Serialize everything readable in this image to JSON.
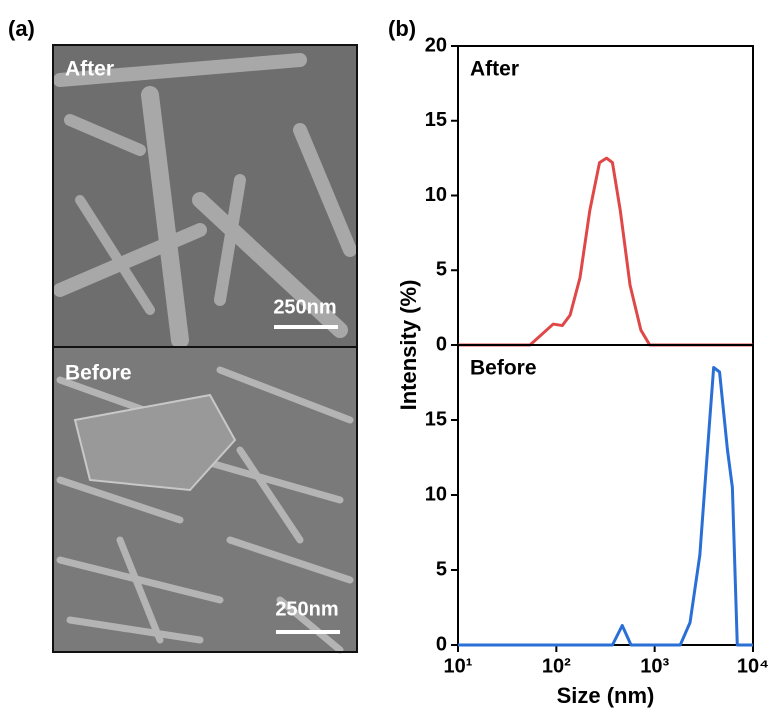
{
  "panel_a": {
    "label": "(a)",
    "images": [
      {
        "caption": "After",
        "scale_bar": "250nm"
      },
      {
        "caption": "Before",
        "scale_bar": "250nm"
      }
    ]
  },
  "panel_b_label": "(b)",
  "chart_data": [
    {
      "type": "line",
      "log_x": true,
      "ylabel": "Intensity (%)",
      "x": [
        10,
        54,
        93,
        115,
        138,
        174,
        219,
        275,
        324,
        372,
        447,
        562,
        724,
        891,
        10000
      ],
      "series": [
        {
          "name": "After",
          "color": "#e04848",
          "values": [
            0,
            0,
            1.4,
            1.3,
            2.0,
            4.5,
            9,
            12.2,
            12.5,
            12.2,
            9,
            4,
            1,
            0,
            0
          ]
        }
      ],
      "xlim": [
        10,
        10000
      ],
      "ylim": [
        0,
        20
      ],
      "yticks": [
        0,
        5,
        10,
        15,
        20
      ]
    },
    {
      "type": "line",
      "log_x": true,
      "xlabel": "Size (nm)",
      "x": [
        10,
        372,
        468,
        575,
        1820,
        2290,
        2880,
        3630,
        3980,
        4570,
        5500,
        6170,
        6920,
        10000
      ],
      "series": [
        {
          "name": "Before",
          "color": "#2a6fd6",
          "values": [
            0,
            0,
            1.3,
            0,
            0,
            1.5,
            6,
            15,
            18.5,
            18.2,
            13,
            10.5,
            0,
            0
          ]
        }
      ],
      "xlim": [
        10,
        10000
      ],
      "ylim": [
        0,
        20
      ],
      "yticks": [
        0,
        5,
        10,
        15
      ],
      "xticks": [
        {
          "value": 10,
          "label": "10¹"
        },
        {
          "value": 100,
          "label": "10²"
        },
        {
          "value": 1000,
          "label": "10³"
        },
        {
          "value": 10000,
          "label": "10⁴"
        }
      ]
    }
  ]
}
